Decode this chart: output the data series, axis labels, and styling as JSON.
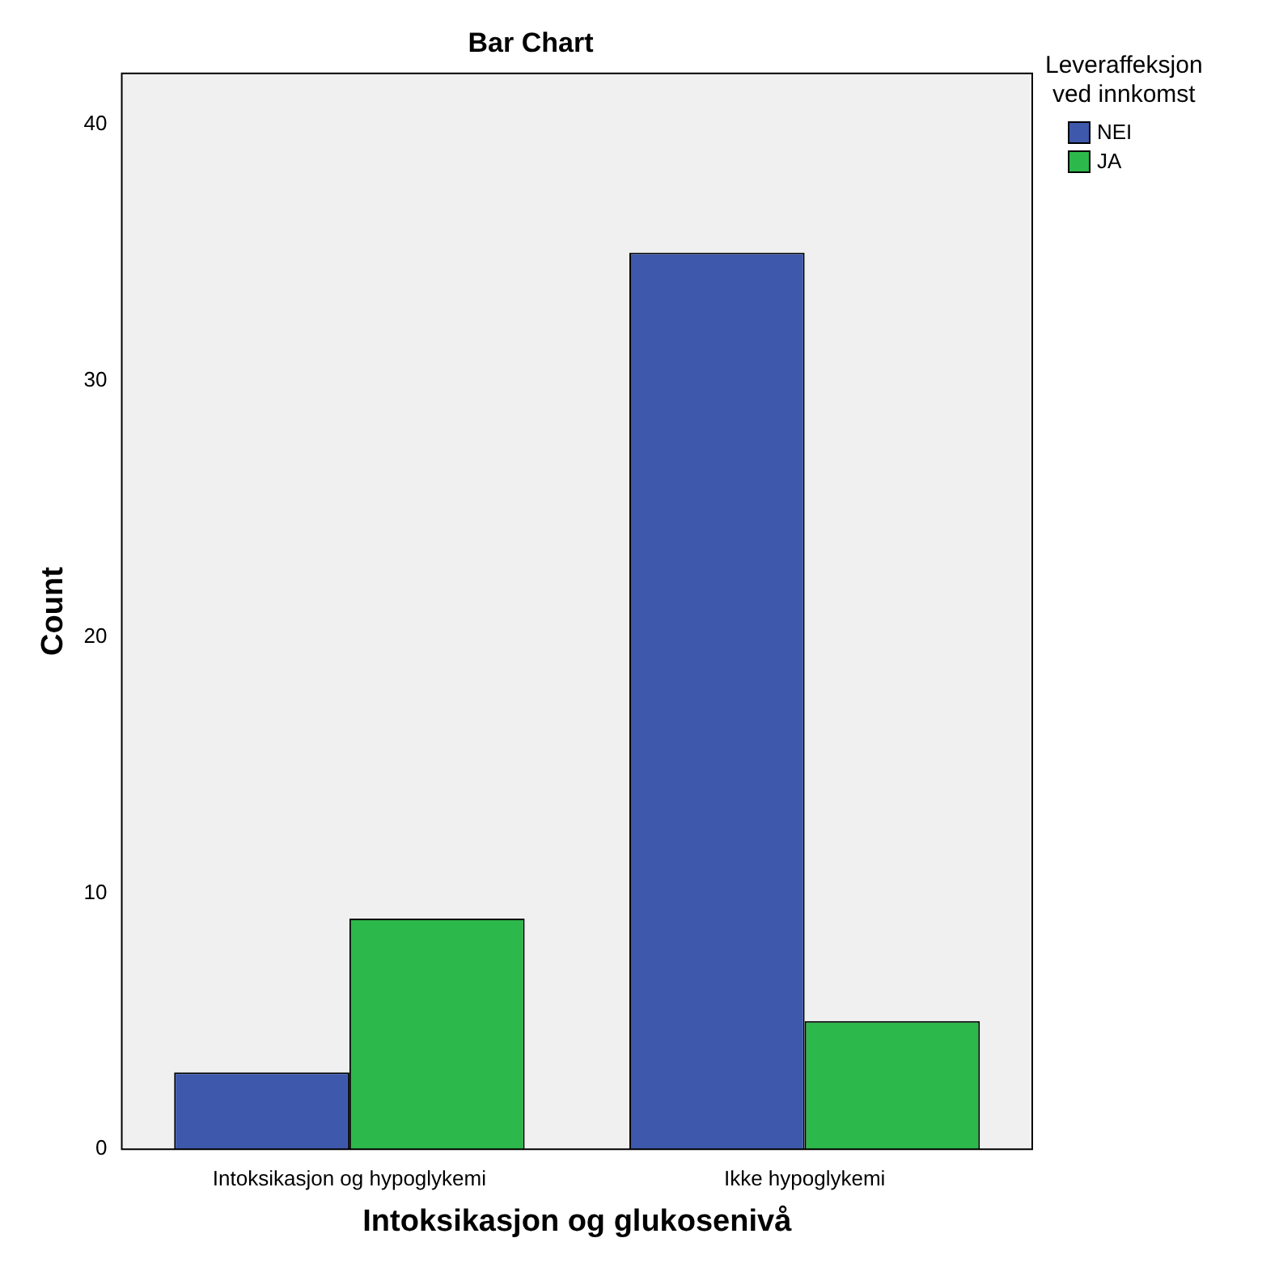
{
  "chart_data": {
    "type": "bar",
    "title": "Bar Chart",
    "xlabel": "Intoksikasjon og glukosenivå",
    "ylabel": "Count",
    "legend_title": "Leveraffeksjon\nved innkomst",
    "categories": [
      "Intoksikasjon og hypoglykemi",
      "Ikke hypoglykemi"
    ],
    "series": [
      {
        "name": "NEI",
        "color": "#3e58ac",
        "values": [
          3,
          35
        ]
      },
      {
        "name": "JA",
        "color": "#2db84b",
        "values": [
          9,
          5
        ]
      }
    ],
    "ylim": [
      0,
      42
    ],
    "yticks": [
      0,
      10,
      20,
      30,
      40
    ],
    "grid": false,
    "legend": "top right"
  }
}
